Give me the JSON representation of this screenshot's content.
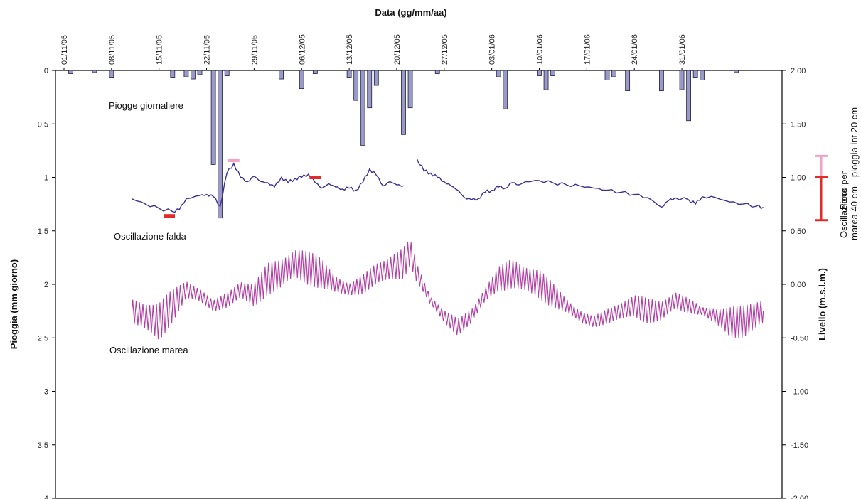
{
  "chart_data": {
    "type": "line",
    "xlabel": "Data (gg/mm/aa)",
    "ylabel_left": "Pioggia (mm giorno)",
    "ylabel_right": "Livello (m.s.l.m.)",
    "x_tick_labels": [
      "01/11/05",
      "08/11/05",
      "15/11/05",
      "22/11/05",
      "29/11/05",
      "06/12/05",
      "13/12/05",
      "20/12/05",
      "27/12/05",
      "03/01/06",
      "10/01/06",
      "17/01/06",
      "24/01/06",
      "31/01/06"
    ],
    "x_range_days": [
      0,
      96
    ],
    "left_axis": {
      "ylim": [
        0,
        4
      ],
      "inverted": true,
      "tick_values": [
        0,
        0.5,
        1,
        1.5,
        2,
        2.5,
        3,
        3.5,
        4
      ],
      "tick_labels": [
        "0",
        "0.5",
        "1",
        "1.5",
        "2",
        "2.5",
        "3",
        "3.5",
        "4"
      ]
    },
    "right_axis": {
      "ylim": [
        -2.0,
        2.0
      ],
      "tick_values": [
        2.0,
        1.5,
        1.0,
        0.5,
        0.0,
        -0.5,
        -1.0,
        -1.5,
        -2.0
      ],
      "tick_labels": [
        "2.00",
        "1.50",
        "1.00",
        "0.50",
        "0.00",
        "-0.50",
        "-1.00",
        "-1.50",
        "-2.00"
      ]
    },
    "annotations": {
      "rain": "Piogge giornaliere",
      "falda": "Oscillazione falda",
      "marea": "Oscillazione marea"
    },
    "side_labels": {
      "picco_line1": "Picco per",
      "picco_line2": "pioggia int 20 cm",
      "osc_line1": "Oscillazione",
      "osc_line2": "marea 40 cm"
    },
    "series": [
      {
        "name": "Piogge giornaliere",
        "type": "bar",
        "axis": "left",
        "color": "#9a9ac6",
        "points": [
          [
            1,
            0.03
          ],
          [
            4.5,
            0.02
          ],
          [
            7,
            0.07
          ],
          [
            16,
            0.07
          ],
          [
            18,
            0.06
          ],
          [
            19,
            0.08
          ],
          [
            20,
            0.04
          ],
          [
            22,
            0.88
          ],
          [
            23,
            1.38
          ],
          [
            24,
            0.05
          ],
          [
            32,
            0.08
          ],
          [
            35,
            0.17
          ],
          [
            37,
            0.03
          ],
          [
            42,
            0.07
          ],
          [
            43,
            0.28
          ],
          [
            44,
            0.7
          ],
          [
            45,
            0.35
          ],
          [
            46,
            0.14
          ],
          [
            50,
            0.6
          ],
          [
            51,
            0.35
          ],
          [
            55,
            0.03
          ],
          [
            64,
            0.06
          ],
          [
            65,
            0.36
          ],
          [
            70,
            0.05
          ],
          [
            71,
            0.18
          ],
          [
            72,
            0.05
          ],
          [
            80,
            0.09
          ],
          [
            81,
            0.06
          ],
          [
            83,
            0.19
          ],
          [
            88,
            0.19
          ],
          [
            91,
            0.18
          ],
          [
            92,
            0.47
          ],
          [
            93,
            0.07
          ],
          [
            94,
            0.09
          ],
          [
            99,
            0.02
          ]
        ]
      },
      {
        "name": "Oscillazione falda",
        "type": "line",
        "axis": "right",
        "color": "#3a2f94",
        "points": [
          [
            10,
            0.8
          ],
          [
            12,
            0.75
          ],
          [
            14,
            0.71
          ],
          [
            16,
            0.68
          ],
          [
            17,
            0.7
          ],
          [
            18,
            0.8
          ],
          [
            20,
            0.83
          ],
          [
            21,
            0.84
          ],
          [
            22,
            0.82
          ],
          [
            23,
            0.73
          ],
          [
            24,
            1.04
          ],
          [
            25,
            1.13
          ],
          [
            26,
            1.0
          ],
          [
            27,
            0.96
          ],
          [
            28,
            1.01
          ],
          [
            29,
            0.96
          ],
          [
            30,
            0.95
          ],
          [
            31,
            0.91
          ],
          [
            32,
            1.0
          ],
          [
            33,
            0.95
          ],
          [
            34,
            0.99
          ],
          [
            35,
            1.0
          ],
          [
            36,
            1.03
          ],
          [
            37,
            0.95
          ],
          [
            38,
            0.9
          ],
          [
            39,
            0.94
          ],
          [
            40,
            0.91
          ],
          [
            41,
            0.89
          ],
          [
            42,
            0.9
          ],
          [
            43,
            0.88
          ],
          [
            44,
            0.95
          ],
          [
            45,
            1.08
          ],
          [
            46,
            1.02
          ],
          [
            47,
            0.92
          ],
          [
            48,
            0.96
          ],
          [
            49,
            0.93
          ],
          [
            50,
            0.92
          ],
          null,
          [
            52,
            1.17
          ],
          [
            53,
            1.06
          ],
          [
            54,
            1.04
          ],
          [
            55,
            1.0
          ],
          [
            56,
            0.96
          ],
          [
            57,
            0.92
          ],
          [
            58,
            0.88
          ],
          [
            59,
            0.81
          ],
          [
            60,
            0.79
          ],
          [
            61,
            0.8
          ],
          [
            62,
            0.86
          ],
          [
            63,
            0.88
          ],
          [
            64,
            0.91
          ],
          [
            65,
            0.9
          ],
          [
            66,
            0.95
          ],
          [
            67,
            0.93
          ],
          [
            68,
            0.96
          ],
          [
            70,
            0.97
          ],
          [
            72,
            0.95
          ],
          [
            74,
            0.93
          ],
          [
            76,
            0.92
          ],
          [
            78,
            0.9
          ],
          [
            80,
            0.88
          ],
          [
            82,
            0.86
          ],
          [
            84,
            0.84
          ],
          [
            86,
            0.81
          ],
          [
            88,
            0.72
          ],
          [
            89,
            0.78
          ],
          [
            90,
            0.81
          ],
          [
            92,
            0.79
          ],
          [
            93,
            0.75
          ],
          [
            94,
            0.82
          ],
          [
            96,
            0.81
          ],
          [
            98,
            0.77
          ],
          [
            100,
            0.75
          ],
          [
            102,
            0.73
          ],
          [
            103,
            0.72
          ]
        ]
      },
      {
        "name": "Oscillazione marea",
        "type": "line",
        "axis": "right",
        "color": "#b23ea5",
        "envelope": [
          [
            10,
            -0.25
          ],
          [
            14,
            -0.35
          ],
          [
            16,
            -0.2
          ],
          [
            18,
            -0.05
          ],
          [
            20,
            -0.1
          ],
          [
            22,
            -0.2
          ],
          [
            24,
            -0.15
          ],
          [
            26,
            -0.05
          ],
          [
            28,
            -0.1
          ],
          [
            30,
            0.05
          ],
          [
            32,
            0.1
          ],
          [
            34,
            0.2
          ],
          [
            36,
            0.15
          ],
          [
            38,
            0.1
          ],
          [
            40,
            0.0
          ],
          [
            42,
            -0.05
          ],
          [
            44,
            0.0
          ],
          [
            46,
            0.1
          ],
          [
            48,
            0.15
          ],
          [
            50,
            0.2
          ],
          [
            51,
            0.3
          ],
          [
            52,
            0.1
          ],
          [
            54,
            -0.15
          ],
          [
            56,
            -0.3
          ],
          [
            58,
            -0.4
          ],
          [
            60,
            -0.3
          ],
          [
            62,
            -0.1
          ],
          [
            64,
            0.05
          ],
          [
            66,
            0.1
          ],
          [
            68,
            0.05
          ],
          [
            70,
            0.0
          ],
          [
            72,
            -0.1
          ],
          [
            74,
            -0.2
          ],
          [
            76,
            -0.3
          ],
          [
            78,
            -0.35
          ],
          [
            80,
            -0.3
          ],
          [
            82,
            -0.25
          ],
          [
            84,
            -0.2
          ],
          [
            86,
            -0.25
          ],
          [
            88,
            -0.25
          ],
          [
            90,
            -0.15
          ],
          [
            92,
            -0.2
          ],
          [
            94,
            -0.25
          ],
          [
            96,
            -0.3
          ],
          [
            98,
            -0.35
          ],
          [
            100,
            -0.35
          ],
          [
            103,
            -0.25
          ]
        ],
        "amplitude": [
          [
            10,
            0.12
          ],
          [
            14,
            0.2
          ],
          [
            18,
            0.1
          ],
          [
            22,
            0.05
          ],
          [
            26,
            0.1
          ],
          [
            30,
            0.15
          ],
          [
            34,
            0.17
          ],
          [
            38,
            0.15
          ],
          [
            42,
            0.06
          ],
          [
            46,
            0.12
          ],
          [
            50,
            0.15
          ],
          [
            54,
            0.05
          ],
          [
            58,
            0.08
          ],
          [
            62,
            0.08
          ],
          [
            66,
            0.15
          ],
          [
            70,
            0.15
          ],
          [
            74,
            0.08
          ],
          [
            78,
            0.05
          ],
          [
            82,
            0.1
          ],
          [
            86,
            0.12
          ],
          [
            90,
            0.1
          ],
          [
            94,
            0.04
          ],
          [
            98,
            0.15
          ],
          [
            103,
            0.15
          ]
        ],
        "cycles_per_day": 2
      },
      {
        "name": "Oscillazione marea 40 cm",
        "type": "range_bar",
        "axis": "right",
        "color": "#e12b2b",
        "range": [
          0.6,
          1.0
        ]
      },
      {
        "name": "Picco per pioggia int 20 cm",
        "type": "range_bar",
        "axis": "right",
        "color": "#f2a1c6",
        "range": [
          1.0,
          1.2
        ]
      },
      {
        "name": "Segmenti rossi",
        "type": "markers",
        "axis": "right",
        "color": "#e12b2b",
        "points": [
          [
            15.5,
            0.64
          ],
          [
            37,
            1.0
          ]
        ]
      },
      {
        "name": "Segmenti rosa",
        "type": "markers",
        "axis": "right",
        "color": "#f2a1c6",
        "points": [
          [
            25,
            1.16
          ]
        ]
      }
    ]
  }
}
